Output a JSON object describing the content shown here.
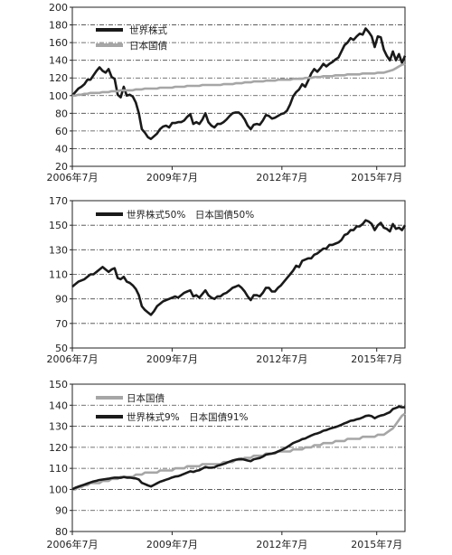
{
  "chart_data": [
    {
      "type": "line",
      "x_ticks": [
        "2006年7月",
        "2009年7月",
        "2012年7月",
        "2015年7月"
      ],
      "ylim": [
        20,
        200
      ],
      "yticks": [
        20,
        40,
        60,
        80,
        100,
        120,
        140,
        160,
        180,
        200
      ],
      "grid": true,
      "legend_position": "top-left",
      "series": [
        {
          "name": "世界株式",
          "color": "#1a1a1a",
          "values": [
            100,
            104,
            108,
            110,
            113,
            118,
            118,
            123,
            128,
            132,
            128,
            126,
            130,
            121,
            119,
            101,
            98,
            110,
            100,
            101,
            99,
            92,
            80,
            62,
            58,
            53,
            51,
            54,
            57,
            62,
            65,
            66,
            64,
            69,
            69,
            70,
            70,
            72,
            76,
            79,
            68,
            70,
            68,
            73,
            80,
            70,
            66,
            64,
            68,
            68,
            70,
            73,
            77,
            80,
            81,
            81,
            78,
            73,
            66,
            62,
            67,
            68,
            67,
            72,
            78,
            77,
            74,
            75,
            77,
            79,
            80,
            83,
            90,
            99,
            104,
            107,
            113,
            110,
            117,
            125,
            130,
            127,
            131,
            136,
            133,
            136,
            138,
            141,
            143,
            150,
            157,
            160,
            165,
            163,
            167,
            170,
            169,
            176,
            172,
            167,
            155,
            167,
            166,
            152,
            145,
            140,
            150,
            140,
            147,
            137,
            145
          ]
        },
        {
          "name": "日本国債",
          "color": "#a6a6a6",
          "values": [
            100,
            100,
            101,
            101,
            102,
            102,
            103,
            103,
            103,
            103,
            104,
            104,
            104,
            105,
            105,
            105,
            106,
            106,
            106,
            106,
            106,
            107,
            107,
            107,
            108,
            108,
            108,
            108,
            108,
            109,
            109,
            109,
            109,
            109,
            110,
            110,
            110,
            110,
            111,
            111,
            111,
            111,
            111,
            112,
            112,
            112,
            112,
            112,
            112,
            112,
            113,
            113,
            113,
            113,
            114,
            114,
            114,
            115,
            115,
            115,
            116,
            116,
            116,
            116,
            117,
            117,
            117,
            117,
            118,
            118,
            118,
            118,
            118,
            119,
            119,
            119,
            119,
            120,
            120,
            120,
            121,
            121,
            121,
            122,
            122,
            122,
            122,
            123,
            123,
            123,
            123,
            124,
            124,
            124,
            124,
            124,
            125,
            125,
            125,
            125,
            125,
            126,
            126,
            126,
            127,
            128,
            129,
            131,
            133,
            135,
            136
          ]
        }
      ]
    },
    {
      "type": "line",
      "x_ticks": [
        "2006年7月",
        "2009年7月",
        "2012年7月",
        "2015年7月"
      ],
      "ylim": [
        50,
        170
      ],
      "yticks": [
        50,
        70,
        90,
        110,
        130,
        150,
        170
      ],
      "grid": true,
      "legend_position": "top-left",
      "series": [
        {
          "name": "世界株式50%　日本国債50%",
          "color": "#1a1a1a",
          "values": [
            100,
            102,
            104,
            105,
            106,
            108,
            110,
            110,
            112,
            114,
            116,
            114,
            112,
            114,
            115,
            107,
            106,
            108,
            104,
            103,
            101,
            98,
            93,
            84,
            81,
            79,
            77,
            80,
            84,
            86,
            88,
            89,
            90,
            91,
            92,
            91,
            93,
            95,
            96,
            97,
            92,
            93,
            91,
            94,
            97,
            93,
            91,
            90,
            92,
            92,
            94,
            95,
            97,
            99,
            100,
            101,
            99,
            96,
            92,
            89,
            93,
            93,
            92,
            95,
            99,
            99,
            96,
            96,
            99,
            101,
            104,
            107,
            110,
            113,
            117,
            116,
            121,
            122,
            123,
            123,
            126,
            127,
            129,
            131,
            131,
            134,
            134,
            135,
            136,
            138,
            142,
            143,
            146,
            146,
            149,
            149,
            151,
            154,
            153,
            151,
            146,
            150,
            152,
            148,
            147,
            145,
            151,
            147,
            148,
            146,
            150
          ]
        }
      ]
    },
    {
      "type": "line",
      "x_ticks": [
        "2006年7月",
        "2009年7月",
        "2012年7月",
        "2015年7月"
      ],
      "ylim": [
        80,
        150
      ],
      "yticks": [
        80,
        90,
        100,
        110,
        120,
        130,
        140,
        150
      ],
      "grid": true,
      "legend_position": "top-left",
      "series": [
        {
          "name": "日本国債",
          "color": "#a6a6a6",
          "values": [
            100,
            100,
            101,
            101,
            102,
            102,
            103,
            103,
            103,
            103,
            104,
            104,
            104,
            105,
            105,
            105,
            106,
            106,
            106,
            106,
            106,
            107,
            107,
            107,
            108,
            108,
            108,
            108,
            108,
            109,
            109,
            109,
            109,
            109,
            110,
            110,
            110,
            110,
            111,
            111,
            111,
            111,
            111,
            112,
            112,
            112,
            112,
            112,
            112,
            112,
            113,
            113,
            113,
            113,
            114,
            114,
            114,
            115,
            115,
            115,
            116,
            116,
            116,
            116,
            117,
            117,
            117,
            117,
            118,
            118,
            118,
            118,
            118,
            119,
            119,
            119,
            119,
            120,
            120,
            120,
            121,
            121,
            121,
            122,
            122,
            122,
            122,
            123,
            123,
            123,
            123,
            124,
            124,
            124,
            124,
            124,
            125,
            125,
            125,
            125,
            125,
            126,
            126,
            126,
            127,
            128,
            129,
            131,
            133,
            135,
            136
          ]
        },
        {
          "name": "世界株式9%　日本国債91%",
          "color": "#1a1a1a",
          "values": [
            100,
            100.8,
            101.3,
            101.8,
            102.3,
            102.8,
            103.3,
            103.8,
            104.1,
            104.5,
            104.7,
            104.9,
            105.1,
            105.4,
            105.6,
            105.6,
            105.5,
            105.9,
            105.6,
            105.6,
            105.4,
            105.2,
            104.7,
            103.1,
            102.5,
            101.9,
            101.4,
            102.1,
            102.9,
            103.6,
            104.1,
            104.6,
            105.1,
            105.7,
            106.1,
            106.3,
            106.8,
            107.4,
            108.0,
            108.6,
            108.3,
            108.8,
            109.1,
            109.9,
            110.6,
            110.3,
            110.3,
            110.5,
            111.2,
            111.6,
            112.1,
            112.6,
            113.2,
            113.7,
            114.1,
            114.4,
            114.5,
            114.1,
            113.7,
            113.4,
            114.3,
            114.6,
            114.9,
            115.6,
            116.5,
            116.8,
            117.0,
            117.4,
            118.0,
            118.6,
            119.3,
            120.1,
            121.0,
            122.0,
            122.6,
            123.1,
            123.9,
            124.2,
            124.9,
            125.6,
            126.2,
            126.6,
            127.1,
            127.9,
            128.2,
            128.8,
            129.2,
            129.6,
            130.1,
            130.7,
            131.4,
            131.9,
            132.6,
            132.8,
            133.3,
            133.6,
            134.2,
            134.9,
            135.1,
            134.8,
            133.8,
            134.6,
            135.1,
            135.4,
            136.1,
            136.7,
            138.2,
            138.7,
            139.3,
            139.0,
            139.0
          ]
        }
      ]
    }
  ]
}
